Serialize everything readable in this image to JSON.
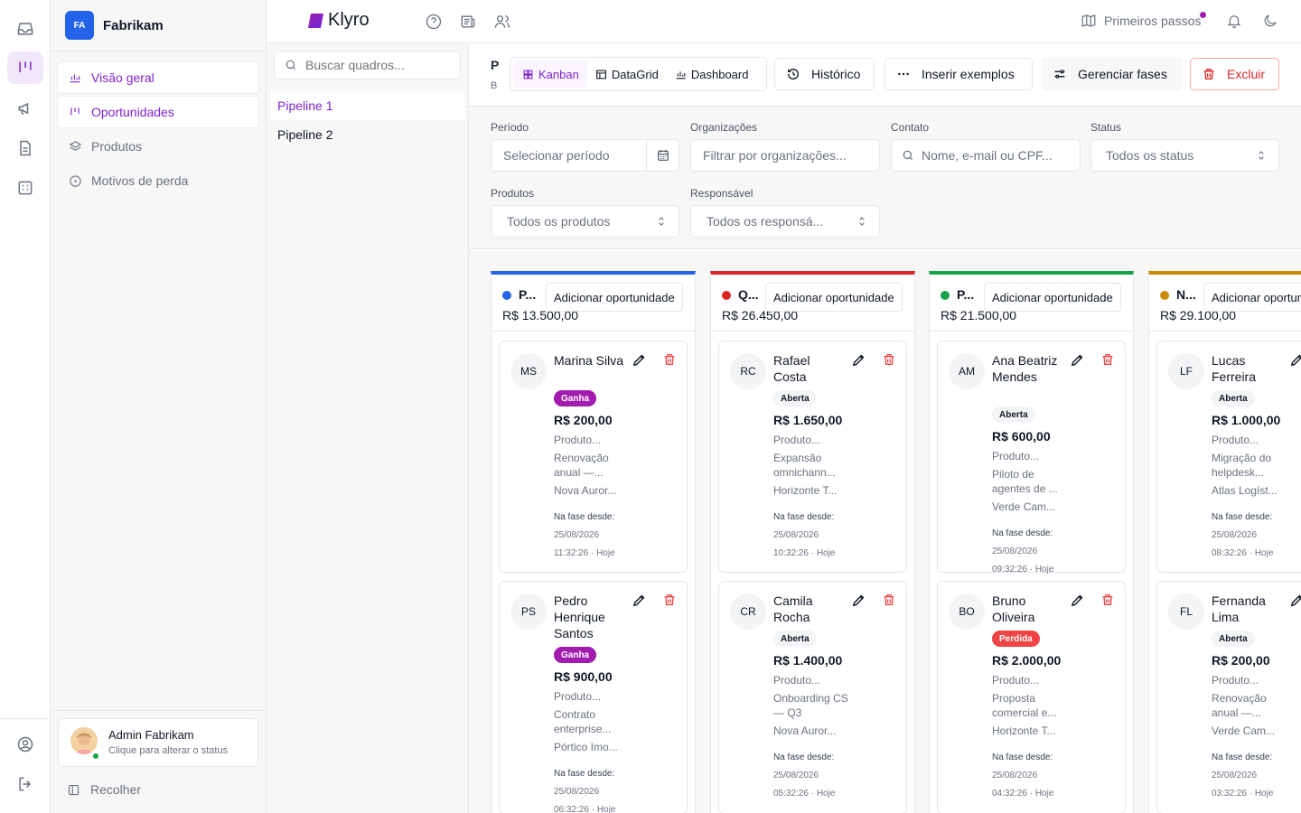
{
  "app": {
    "name": "Klyro"
  },
  "org": {
    "initials": "FA",
    "name": "Fabrikam"
  },
  "nav": [
    {
      "label": "Visão geral",
      "icon": "bar-chart-icon",
      "active": true
    },
    {
      "label": "Oportunidades",
      "icon": "kanban-icon",
      "active": true
    },
    {
      "label": "Produtos",
      "icon": "layers-icon",
      "active": false
    },
    {
      "label": "Motivos de perda",
      "icon": "circle-info-icon",
      "active": false
    }
  ],
  "user": {
    "name": "Admin Fabrikam",
    "status_hint": "Clique para alterar o status"
  },
  "collapse_label": "Recolher",
  "boards": {
    "search_placeholder": "Buscar quadros...",
    "items": [
      {
        "label": "Pipeline 1",
        "active": true
      },
      {
        "label": "Pipeline 2",
        "active": false
      }
    ]
  },
  "topbar": {
    "first_steps": "Primeiros passos"
  },
  "header": {
    "title": "P",
    "subtitle": "B",
    "views": [
      {
        "label": "Kanban",
        "active": true
      },
      {
        "label": "DataGrid",
        "active": false
      },
      {
        "label": "Dashboard",
        "active": false
      }
    ],
    "history": "Histórico",
    "insert_examples": "Inserir exemplos",
    "manage_phases": "Gerenciar fases",
    "delete": "Excluir"
  },
  "filters": {
    "period": {
      "label": "Período",
      "placeholder": "Selecionar período"
    },
    "orgs": {
      "label": "Organizações",
      "placeholder": "Filtrar por organizações..."
    },
    "contact": {
      "label": "Contato",
      "placeholder": "Nome, e-mail ou CPF..."
    },
    "status": {
      "label": "Status",
      "value": "Todos os status"
    },
    "products": {
      "label": "Produtos",
      "value": "Todos os produtos"
    },
    "owner": {
      "label": "Responsável",
      "value": "Todos os responsá..."
    }
  },
  "add_label": "Adicionar oportunidade",
  "phase_since_label": "Na fase desde:",
  "columns": [
    {
      "name": "P...",
      "total": "R$ 13.500,00",
      "color": "#2563eb",
      "dot": "#2563eb",
      "cards": [
        {
          "initials": "MS",
          "name": "Marina Silva",
          "status": "Ganha",
          "status_type": "ganha",
          "value": "R$ 200,00",
          "product": "Produto...",
          "desc": "Renovação anual —...",
          "org": "Nova Auror...",
          "date": "25/08/2026",
          "time": "11:32:26 · Hoje"
        },
        {
          "initials": "PS",
          "name": "Pedro Henrique Santos",
          "status": "Ganha",
          "status_type": "ganha",
          "value": "R$ 900,00",
          "product": "Produto...",
          "desc": "Contrato enterprise...",
          "org": "Pórtico Imo...",
          "date": "25/08/2026",
          "time": "06:32:26 · Hoje"
        }
      ]
    },
    {
      "name": "Q...",
      "total": "R$ 26.450,00",
      "color": "#dc2626",
      "dot": "#dc2626",
      "cards": [
        {
          "initials": "RC",
          "name": "Rafael Costa",
          "status": "Aberta",
          "status_type": "aberta",
          "value": "R$ 1.650,00",
          "product": "Produto...",
          "desc": "Expansão omnichann...",
          "org": "Horizonte T...",
          "date": "25/08/2026",
          "time": "10:32:26 · Hoje"
        },
        {
          "initials": "CR",
          "name": "Camila Rocha",
          "status": "Aberta",
          "status_type": "aberta",
          "value": "R$ 1.400,00",
          "product": "Produto...",
          "desc": "Onboarding CS — Q3",
          "org": "Nova Auror...",
          "date": "25/08/2026",
          "time": "05:32:26 · Hoje"
        }
      ]
    },
    {
      "name": "P...",
      "total": "R$ 21.500,00",
      "color": "#16a34a",
      "dot": "#16a34a",
      "cards": [
        {
          "initials": "AM",
          "name": "Ana Beatriz Mendes",
          "status": "Aberta",
          "status_type": "aberta",
          "value": "R$ 600,00",
          "product": "Produto...",
          "desc": "Piloto de agentes de ...",
          "org": "Verde Cam...",
          "date": "25/08/2026",
          "time": "09:32:26 · Hoje"
        },
        {
          "initials": "BO",
          "name": "Bruno Oliveira",
          "status": "Perdida",
          "status_type": "perdida",
          "value": "R$ 2.000,00",
          "product": "Produto...",
          "desc": "Proposta comercial e...",
          "org": "Horizonte T...",
          "date": "25/08/2026",
          "time": "04:32:26 · Hoje"
        }
      ]
    },
    {
      "name": "N...",
      "total": "R$ 29.100,00",
      "color": "#ca8a04",
      "dot": "#ca8a04",
      "cards": [
        {
          "initials": "LF",
          "name": "Lucas Ferreira",
          "status": "Aberta",
          "status_type": "aberta",
          "value": "R$ 1.000,00",
          "product": "Produto...",
          "desc": "Migração do helpdesk...",
          "org": "Atlas Logíst...",
          "date": "25/08/2026",
          "time": "08:32:26 · Hoje"
        },
        {
          "initials": "FL",
          "name": "Fernanda Lima",
          "status": "Aberta",
          "status_type": "aberta",
          "value": "R$ 200,00",
          "product": "Produto...",
          "desc": "Renovação anual —...",
          "org": "Verde Cam...",
          "date": "25/08/2026",
          "time": "03:32:26 · Hoje"
        }
      ]
    }
  ]
}
